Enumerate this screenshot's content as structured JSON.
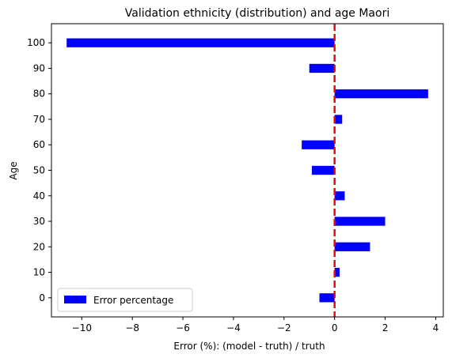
{
  "chart_data": {
    "type": "bar",
    "orientation": "horizontal",
    "title": "Validation ethnicity (distribution) and age Maori",
    "xlabel": "Error (%): (model - truth) / truth",
    "ylabel": "Age",
    "categories": [
      "0",
      "10",
      "20",
      "30",
      "40",
      "50",
      "60",
      "70",
      "80",
      "90",
      "100"
    ],
    "series": [
      {
        "name": "Error percentage",
        "values": [
          -0.6,
          0.2,
          1.4,
          2.0,
          0.4,
          -0.9,
          -1.3,
          0.3,
          3.7,
          -1.0,
          -10.6
        ],
        "color": "#0000ff"
      }
    ],
    "xlim": [
      -11.2,
      4.3
    ],
    "xticks": [
      -10,
      -8,
      -6,
      -4,
      -2,
      0,
      2,
      4
    ],
    "xtick_labels": [
      "−10",
      "−8",
      "−6",
      "−4",
      "−2",
      "0",
      "2",
      "4"
    ],
    "reference_line": {
      "x": 0,
      "color": "#ff0000",
      "style": "dashed"
    },
    "grid": false,
    "legend": {
      "position": "lower-left",
      "entries": [
        "Error percentage"
      ]
    }
  }
}
